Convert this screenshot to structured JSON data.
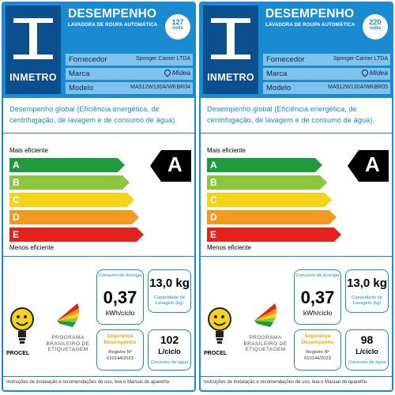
{
  "labels": [
    {
      "logo_text": "INMETRO",
      "title": "DESEMPENHO",
      "subtitle": "LAVADORA DE ROUPA AUTOMÁTICA",
      "voltage": {
        "value": "127",
        "unit": "volts"
      },
      "fornecedor_label": "Fornecedor",
      "fornecedor_value": "Springer Carrier LTDA",
      "marca_label": "Marca",
      "marca_value": "Midea",
      "modelo_label": "Modelo",
      "modelo_value": "MA512W130A/WKBR04",
      "performance_text": "Desempenho global (Eficiência energética, de centrifugação, de lavagem e de consumo de água).",
      "mais_eficiente": "Mais eficiente",
      "menos_eficiente": "Menos eficiente",
      "classes": [
        "A",
        "B",
        "C",
        "D",
        "E"
      ],
      "rating": "A",
      "energy_title": "Consumo de Energia",
      "energy_value": "0,37",
      "energy_unit": "kWh/ciclo",
      "capacity_value": "13,0 kg",
      "capacity_label": "Capacidade de Lavagem (kg)",
      "safety_title": "Segurança Desempenho",
      "registro": "Registro Nº 010144/2023",
      "water_value": "102",
      "water_unit": "L/ciclo",
      "water_label": "Consumo de água",
      "procel_label": "PROCEL",
      "pbe_text": "PROGRAMA BRASILEIRO DE ETIQUETAGEM",
      "footer": "Instruções de instalação e recomendações de uso, leia o Manual do aparelho."
    },
    {
      "logo_text": "INMETRO",
      "title": "DESEMPENHO",
      "subtitle": "LAVADORA DE ROUPA AUTOMÁTICA",
      "voltage": {
        "value": "220",
        "unit": "volts"
      },
      "fornecedor_label": "Fornecedor",
      "fornecedor_value": "Springer Carrier LTDA",
      "marca_label": "Marca",
      "marca_value": "Midea",
      "modelo_label": "Modelo",
      "modelo_value": "MA512W130A/WKBR05",
      "performance_text": "Desempenho global (Eficiência energética, de centrifugação, de lavagem e de consumo de água).",
      "mais_eficiente": "Mais eficiente",
      "menos_eficiente": "Menos eficiente",
      "classes": [
        "A",
        "B",
        "C",
        "D",
        "E"
      ],
      "rating": "A",
      "energy_title": "Consumo de Energia",
      "energy_value": "0,37",
      "energy_unit": "kWh/ciclo",
      "capacity_value": "13,0 kg",
      "capacity_label": "Capacidade de Lavagem (kg)",
      "safety_title": "Segurança Desempenho",
      "registro": "Registro Nº 010144/2023",
      "water_value": "98",
      "water_unit": "L/ciclo",
      "water_label": "Consumo de água",
      "procel_label": "PROCEL",
      "pbe_text": "PROGRAMA BRASILEIRO DE ETIQUETAGEM",
      "footer": "Instruções de instalação e recomendações de uso, leia o Manual do aparelho."
    }
  ],
  "colors": {
    "header_blue": "#1a8bd1",
    "logo_navy": "#0c4f8f",
    "row_blue": "#7fc3ec",
    "class_A": "#1f9a3e",
    "class_B": "#8cc63f",
    "class_C": "#f6d21a",
    "class_D": "#f39a1e",
    "class_E": "#e3231b",
    "rating_bg": "#000000",
    "safety_text": "#f2a900"
  },
  "icons": {
    "logo": "inmetro-logo-icon",
    "rating_arrow": "rating-arrow-icon",
    "procel": "procel-seal-icon",
    "pbe": "pbe-logo-icon"
  }
}
